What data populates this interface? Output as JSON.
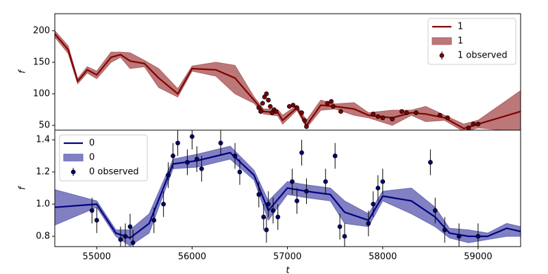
{
  "chart_data": [
    {
      "type": "line",
      "ylabel": "f",
      "legend": "upper right",
      "xlim": [
        54560,
        59446
      ],
      "ylim": [
        42.4,
        227
      ],
      "yticks": [
        50,
        100,
        150,
        200
      ],
      "x": [
        54560,
        54700,
        54800,
        54900,
        55000,
        55150,
        55250,
        55350,
        55500,
        55650,
        55850,
        56000,
        56250,
        56450,
        56650,
        56750,
        56900,
        56950,
        57100,
        57200,
        57350,
        57500,
        57700,
        57850,
        58100,
        58300,
        58450,
        58650,
        58850,
        59000,
        59446
      ],
      "series": [
        {
          "name": "1",
          "kind": "line",
          "color": "#800000",
          "values": [
            195,
            170,
            120,
            138,
            130,
            158,
            162,
            152,
            148,
            125,
            100,
            140,
            138,
            125,
            90,
            72,
            70,
            58,
            78,
            50,
            82,
            80,
            76,
            66,
            62,
            70,
            68,
            62,
            45,
            52,
            72
          ]
        },
        {
          "name": "1",
          "kind": "band",
          "color": "#b06060",
          "lower": [
            190,
            164,
            116,
            133,
            124,
            150,
            158,
            140,
            143,
            110,
            95,
            136,
            128,
            100,
            85,
            68,
            65,
            52,
            74,
            46,
            74,
            76,
            66,
            62,
            50,
            66,
            56,
            58,
            40,
            46,
            40
          ],
          "upper": [
            200,
            176,
            124,
            143,
            136,
            166,
            166,
            165,
            153,
            140,
            108,
            144,
            150,
            145,
            95,
            76,
            75,
            66,
            82,
            58,
            90,
            84,
            86,
            70,
            74,
            74,
            80,
            66,
            52,
            58,
            105
          ]
        },
        {
          "name": "1 observed",
          "kind": "observed",
          "color": "#800000",
          "x": [
            56700,
            56720,
            56740,
            56760,
            56780,
            56800,
            56820,
            56840,
            56860,
            56880,
            57020,
            57060,
            57100,
            57150,
            57180,
            57200,
            57420,
            57460,
            57480,
            57560,
            57900,
            57950,
            58000,
            58100,
            58200,
            58250,
            58350,
            58600,
            58680,
            58900,
            58950,
            59000
          ],
          "values": [
            78,
            72,
            85,
            95,
            100,
            90,
            80,
            70,
            75,
            72,
            80,
            82,
            78,
            70,
            58,
            48,
            85,
            88,
            80,
            72,
            68,
            64,
            62,
            60,
            72,
            70,
            70,
            66,
            62,
            46,
            52,
            52
          ],
          "errors": [
            3,
            3,
            3,
            3,
            3,
            3,
            3,
            3,
            3,
            3,
            3,
            3,
            3,
            3,
            3,
            3,
            3,
            3,
            3,
            3,
            3,
            3,
            3,
            3,
            3,
            3,
            3,
            3,
            3,
            3,
            3,
            3
          ]
        }
      ]
    },
    {
      "type": "line",
      "ylabel": "f",
      "xlabel": "t",
      "legend": "upper left",
      "xlim": [
        54560,
        59446
      ],
      "ylim": [
        0.736,
        1.46
      ],
      "xticks": [
        55000,
        56000,
        57000,
        58000,
        59000
      ],
      "yticks": [
        0.8,
        {
          "value": 1,
          "label": "1.0"
        },
        1.2,
        1.4
      ],
      "x": [
        54560,
        55000,
        55200,
        55350,
        55550,
        55800,
        56050,
        56400,
        56650,
        56800,
        57000,
        57200,
        57450,
        57600,
        57850,
        58000,
        58300,
        58550,
        58700,
        58900,
        59100,
        59300,
        59446
      ],
      "series": [
        {
          "name": "0",
          "kind": "line",
          "color": "#000080",
          "values": [
            0.98,
            1.0,
            0.82,
            0.79,
            0.88,
            1.25,
            1.27,
            1.32,
            1.18,
            0.96,
            1.1,
            1.08,
            1.06,
            0.95,
            0.9,
            1.05,
            1.02,
            0.92,
            0.82,
            0.8,
            0.8,
            0.85,
            0.83
          ]
        },
        {
          "name": "0",
          "kind": "band",
          "color": "#6a6ab8",
          "lower": [
            0.87,
            0.98,
            0.8,
            0.74,
            0.82,
            1.22,
            1.23,
            1.28,
            1.15,
            0.9,
            1.06,
            1.04,
            1.02,
            0.88,
            0.86,
            1.02,
            0.94,
            0.86,
            0.79,
            0.76,
            0.78,
            0.8,
            0.8
          ],
          "upper": [
            1.09,
            1.02,
            0.84,
            0.84,
            0.94,
            1.28,
            1.31,
            1.36,
            1.21,
            1.02,
            1.14,
            1.12,
            1.1,
            1.02,
            0.94,
            1.08,
            1.1,
            0.98,
            0.85,
            0.84,
            0.82,
            0.88,
            0.86
          ]
        },
        {
          "name": "0 observed",
          "kind": "observed",
          "color": "#000080",
          "x": [
            54950,
            55000,
            55250,
            55300,
            55350,
            55380,
            55600,
            55700,
            55750,
            55800,
            55850,
            55950,
            56000,
            56050,
            56100,
            56300,
            56450,
            56500,
            56700,
            56750,
            56780,
            56800,
            56850,
            56900,
            57050,
            57100,
            57150,
            57200,
            57400,
            57500,
            57550,
            57600,
            57850,
            57900,
            57950,
            58000,
            58500,
            58550,
            58650,
            58800,
            59000
          ],
          "values": [
            0.96,
            0.9,
            0.78,
            0.8,
            0.86,
            0.76,
            0.9,
            1.0,
            1.18,
            1.3,
            1.38,
            1.26,
            1.42,
            1.28,
            1.22,
            1.38,
            1.3,
            1.2,
            1.06,
            0.92,
            0.84,
            1.0,
            0.96,
            0.92,
            1.14,
            1.02,
            1.32,
            1.08,
            1.14,
            1.3,
            0.86,
            0.8,
            0.88,
            1.0,
            1.1,
            1.14,
            1.26,
            0.96,
            0.84,
            0.8,
            0.8
          ],
          "errors": [
            0.08,
            0.08,
            0.08,
            0.08,
            0.08,
            0.08,
            0.08,
            0.08,
            0.08,
            0.08,
            0.08,
            0.08,
            0.08,
            0.08,
            0.08,
            0.08,
            0.08,
            0.08,
            0.08,
            0.08,
            0.08,
            0.08,
            0.08,
            0.08,
            0.08,
            0.08,
            0.08,
            0.08,
            0.08,
            0.08,
            0.08,
            0.08,
            0.08,
            0.08,
            0.08,
            0.08,
            0.08,
            0.08,
            0.08,
            0.08,
            0.08
          ]
        }
      ]
    }
  ]
}
